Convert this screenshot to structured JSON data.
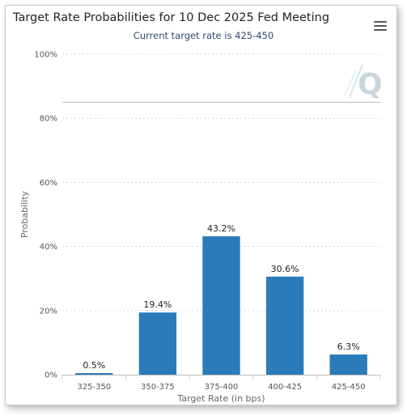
{
  "chart_data": {
    "type": "bar",
    "title": "Target Rate Probabilities for 10 Dec 2025 Fed Meeting",
    "subtitle": "Current target rate is 425-450",
    "xlabel": "Target Rate (in bps)",
    "ylabel": "Probability",
    "categories": [
      "325-350",
      "350-375",
      "375-400",
      "400-425",
      "425-450"
    ],
    "values": [
      0.5,
      19.4,
      43.2,
      30.6,
      6.3
    ],
    "data_labels": [
      "0.5%",
      "19.4%",
      "43.2%",
      "30.6%",
      "6.3%"
    ],
    "ylim": [
      0,
      100
    ],
    "yticks": [
      0,
      20,
      40,
      60,
      80,
      100
    ],
    "ytick_labels": [
      "0%",
      "20%",
      "40%",
      "60%",
      "80%",
      "100%"
    ],
    "reference_line": 85,
    "grid": true,
    "bar_color": "#2b7bba",
    "grid_color": "#d8d8d8",
    "reference_line_color": "#bbbbbb"
  },
  "ui": {
    "menu_icon": "hamburger-menu-icon",
    "watermark_icon": "q-logo-icon",
    "watermark_color": "#c9d6de"
  }
}
